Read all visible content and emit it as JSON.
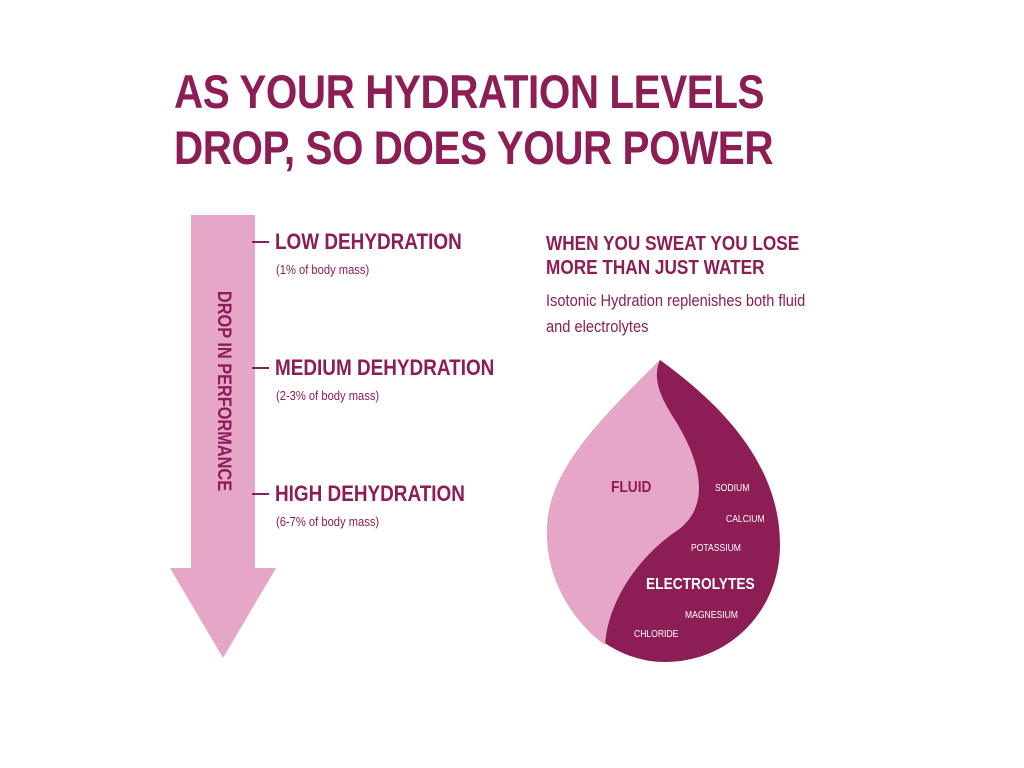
{
  "title": {
    "line1": "AS YOUR HYDRATION LEVELS",
    "line2": "DROP, SO DOES YOUR POWER"
  },
  "arrow": {
    "label": "DROP IN PERFORMANCE"
  },
  "levels": [
    {
      "label": "LOW DEHYDRATION",
      "note": "(1% of body mass)"
    },
    {
      "label": "MEDIUM DEHYDRATION",
      "note": "(2-3% of body mass)"
    },
    {
      "label": "HIGH DEHYDRATION",
      "note": "(6-7% of body mass)"
    }
  ],
  "sweat": {
    "heading_line1": "WHEN YOU SWEAT YOU LOSE",
    "heading_line2": "MORE THAN JUST WATER",
    "body_line1": "Isotonic Hydration replenishes both fluid",
    "body_line2": "and electrolytes"
  },
  "drop": {
    "fluid_label": "FLUID",
    "electrolytes_label": "ELECTROLYTES",
    "minerals": [
      "SODIUM",
      "CALCIUM",
      "POTASSIUM",
      "MAGNESIUM",
      "CHLORIDE"
    ]
  },
  "colors": {
    "primary": "#8c1d55",
    "light": "#e6a6c7",
    "background": "#ffffff"
  }
}
